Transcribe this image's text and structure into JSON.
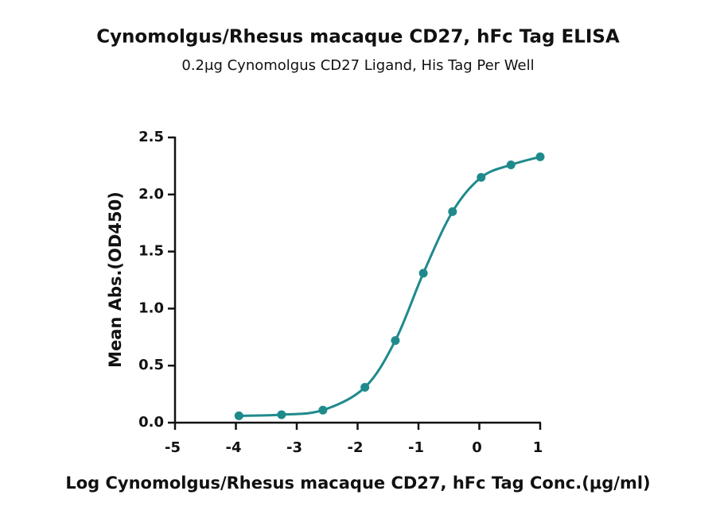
{
  "chart_data": {
    "type": "scatter",
    "title": "Cynomolgus/Rhesus macaque CD27, hFc Tag ELISA",
    "subtitle": "0.2μg Cynomolgus CD27 Ligand, His Tag Per Well",
    "x_label": "Log Cynomolgus/Rhesus macaque CD27, hFc Tag Conc.(μg/ml)",
    "y_label": "Mean Abs.(OD450)",
    "x": [
      -3.95,
      -3.25,
      -2.57,
      -1.88,
      -1.38,
      -0.92,
      -0.44,
      0.03,
      0.52,
      1.0
    ],
    "values": [
      0.06,
      0.07,
      0.11,
      0.31,
      0.72,
      1.31,
      1.85,
      2.15,
      2.26,
      2.33
    ],
    "color": "#1f8a8c",
    "xlim": [
      -5,
      1
    ],
    "xticks": [
      -5,
      -4,
      -3,
      -2,
      -1,
      0,
      1
    ],
    "ylim": [
      0,
      2.5
    ],
    "yticks": [
      {
        "value": 0,
        "label": "0.0"
      },
      0.5,
      {
        "value": 1,
        "label": "1.0"
      },
      1.5,
      {
        "value": 2,
        "label": "2.0"
      },
      2.5
    ]
  }
}
